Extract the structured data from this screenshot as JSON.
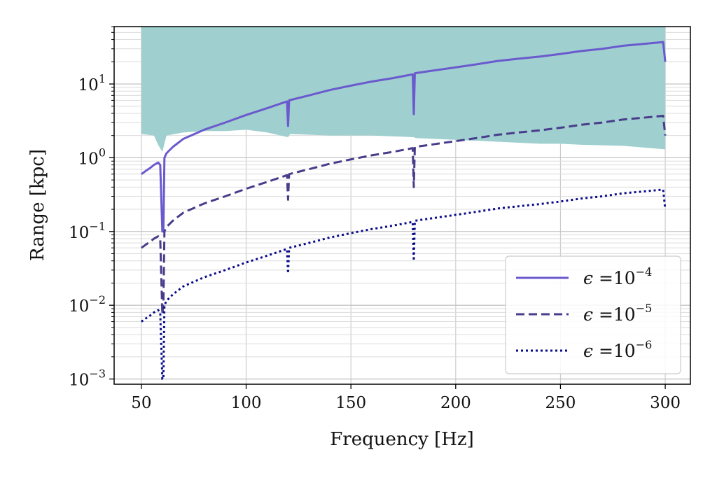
{
  "chart_data": {
    "type": "line",
    "xlabel": "Frequency [Hz]",
    "ylabel": "Range [kpc]",
    "x_scale": "linear",
    "y_scale": "log",
    "xlim": [
      37,
      312
    ],
    "ylim": [
      0.00085,
      60
    ],
    "x_ticks": [
      50,
      100,
      150,
      200,
      250,
      300
    ],
    "x_tick_labels": [
      "50",
      "100",
      "150",
      "200",
      "250",
      "300"
    ],
    "y_ticks": [
      0.001,
      0.01,
      0.1,
      1,
      10
    ],
    "y_tick_labels": [
      {
        "base": "10",
        "exp": "−3"
      },
      {
        "base": "10",
        "exp": "−2"
      },
      {
        "base": "10",
        "exp": "−1"
      },
      {
        "base": "10",
        "exp": "0"
      },
      {
        "base": "10",
        "exp": "1"
      }
    ],
    "grid": true,
    "legend_position": "bottom-right",
    "band": {
      "color": "#9fcfcf",
      "upper": 60,
      "x_range": [
        50,
        300
      ],
      "lower": [
        [
          50,
          2.1
        ],
        [
          56,
          2.0
        ],
        [
          58,
          1.5
        ],
        [
          60,
          1.2
        ],
        [
          62,
          2.0
        ],
        [
          70,
          2.2
        ],
        [
          80,
          2.3
        ],
        [
          90,
          2.3
        ],
        [
          100,
          2.4
        ],
        [
          110,
          2.2
        ],
        [
          120,
          1.9
        ],
        [
          121,
          2.1
        ],
        [
          140,
          2.0
        ],
        [
          160,
          2.0
        ],
        [
          180,
          1.9
        ],
        [
          181,
          1.85
        ],
        [
          200,
          1.75
        ],
        [
          220,
          1.65
        ],
        [
          240,
          1.55
        ],
        [
          250,
          1.55
        ],
        [
          260,
          1.5
        ],
        [
          280,
          1.45
        ],
        [
          300,
          1.3
        ]
      ]
    },
    "series": [
      {
        "name": "ε =10^−4",
        "legend_prefix": "ϵ =",
        "legend_base": "10",
        "legend_exp": "−4",
        "color": "#6a5acd",
        "style": "solid",
        "points": [
          [
            50,
            0.6
          ],
          [
            52,
            0.66
          ],
          [
            54,
            0.72
          ],
          [
            56,
            0.8
          ],
          [
            58,
            0.86
          ],
          [
            59,
            0.8
          ],
          [
            60,
            0.1
          ],
          [
            60.5,
            0.1
          ],
          [
            61,
            1.0
          ],
          [
            62,
            1.15
          ],
          [
            65,
            1.4
          ],
          [
            70,
            1.8
          ],
          [
            80,
            2.4
          ],
          [
            90,
            3.0
          ],
          [
            100,
            3.8
          ],
          [
            110,
            4.7
          ],
          [
            119.5,
            5.8
          ],
          [
            120,
            2.7
          ],
          [
            120.5,
            6.0
          ],
          [
            130,
            7.0
          ],
          [
            140,
            8.3
          ],
          [
            150,
            9.5
          ],
          [
            160,
            10.8
          ],
          [
            170,
            12.0
          ],
          [
            179.5,
            13.5
          ],
          [
            180,
            3.9
          ],
          [
            180.5,
            14.0
          ],
          [
            190,
            15.3
          ],
          [
            200,
            16.8
          ],
          [
            210,
            18.5
          ],
          [
            220,
            20.5
          ],
          [
            230,
            22.0
          ],
          [
            240,
            23.5
          ],
          [
            250,
            25.5
          ],
          [
            260,
            28.0
          ],
          [
            270,
            30.0
          ],
          [
            280,
            33.0
          ],
          [
            290,
            35.0
          ],
          [
            299,
            37.0
          ],
          [
            300,
            20.0
          ]
        ]
      },
      {
        "name": "ε =10^−5",
        "legend_prefix": "ϵ =",
        "legend_base": "10",
        "legend_exp": "−5",
        "color": "#483d8b",
        "style": "dashed",
        "points": [
          [
            50,
            0.06
          ],
          [
            52,
            0.066
          ],
          [
            54,
            0.072
          ],
          [
            56,
            0.08
          ],
          [
            58,
            0.086
          ],
          [
            59,
            0.08
          ],
          [
            60,
            0.0075
          ],
          [
            60.5,
            0.01
          ],
          [
            61,
            0.1
          ],
          [
            62,
            0.115
          ],
          [
            65,
            0.14
          ],
          [
            70,
            0.18
          ],
          [
            80,
            0.24
          ],
          [
            90,
            0.3
          ],
          [
            100,
            0.38
          ],
          [
            110,
            0.47
          ],
          [
            119.5,
            0.58
          ],
          [
            120,
            0.27
          ],
          [
            120.5,
            0.6
          ],
          [
            130,
            0.7
          ],
          [
            140,
            0.83
          ],
          [
            150,
            0.95
          ],
          [
            160,
            1.08
          ],
          [
            170,
            1.2
          ],
          [
            179.5,
            1.35
          ],
          [
            180,
            0.4
          ],
          [
            180.5,
            1.4
          ],
          [
            190,
            1.53
          ],
          [
            200,
            1.68
          ],
          [
            210,
            1.85
          ],
          [
            220,
            2.05
          ],
          [
            230,
            2.2
          ],
          [
            240,
            2.35
          ],
          [
            250,
            2.55
          ],
          [
            260,
            2.8
          ],
          [
            270,
            3.0
          ],
          [
            280,
            3.3
          ],
          [
            290,
            3.5
          ],
          [
            299,
            3.7
          ],
          [
            300,
            2.0
          ]
        ]
      },
      {
        "name": "ε =10^−6",
        "legend_prefix": "ϵ =",
        "legend_base": "10",
        "legend_exp": "−6",
        "color": "#0a0a8a",
        "style": "dotted",
        "points": [
          [
            50,
            0.006
          ],
          [
            52,
            0.0066
          ],
          [
            54,
            0.0072
          ],
          [
            56,
            0.008
          ],
          [
            58,
            0.0086
          ],
          [
            59,
            0.008
          ],
          [
            60,
            0.001
          ],
          [
            60.5,
            0.001
          ],
          [
            61,
            0.01
          ],
          [
            62,
            0.0115
          ],
          [
            65,
            0.014
          ],
          [
            70,
            0.018
          ],
          [
            80,
            0.024
          ],
          [
            90,
            0.03
          ],
          [
            100,
            0.038
          ],
          [
            110,
            0.047
          ],
          [
            119.5,
            0.058
          ],
          [
            120,
            0.027
          ],
          [
            120.5,
            0.06
          ],
          [
            130,
            0.07
          ],
          [
            140,
            0.083
          ],
          [
            150,
            0.095
          ],
          [
            160,
            0.108
          ],
          [
            170,
            0.12
          ],
          [
            179.5,
            0.135
          ],
          [
            180,
            0.04
          ],
          [
            180.5,
            0.14
          ],
          [
            190,
            0.153
          ],
          [
            200,
            0.168
          ],
          [
            210,
            0.185
          ],
          [
            220,
            0.205
          ],
          [
            230,
            0.22
          ],
          [
            240,
            0.235
          ],
          [
            250,
            0.255
          ],
          [
            260,
            0.28
          ],
          [
            270,
            0.3
          ],
          [
            280,
            0.33
          ],
          [
            290,
            0.35
          ],
          [
            299,
            0.37
          ],
          [
            300,
            0.2
          ]
        ]
      }
    ]
  }
}
